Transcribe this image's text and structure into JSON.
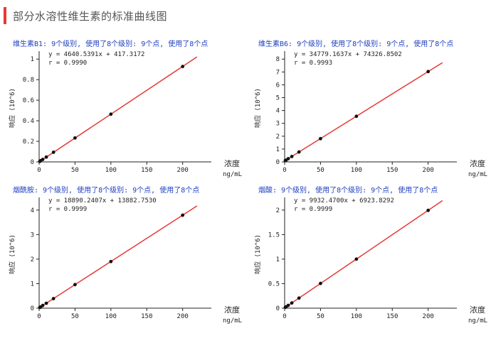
{
  "page_title": "部分水溶性维生素的标准曲线图",
  "chart_data": [
    {
      "type": "scatter",
      "title": "维生素B1: 9个级别, 使用了8个级别: 9个点, 使用了8个点",
      "equation": "y = 4640.5391x + 417.3172",
      "r_value": "r = 0.9990",
      "xlabel": "浓度",
      "xunit": "ng/mL",
      "ylabel": "响应 (10^6)",
      "xlim": [
        0,
        240
      ],
      "ylim": [
        0,
        1.05
      ],
      "x_ticks": [
        "0",
        "50",
        "100",
        "150",
        "200"
      ],
      "y_ticks": [
        "0",
        "0.2",
        "0.4",
        "0.6",
        "0.8",
        "1"
      ],
      "x_tick_values": [
        0,
        50,
        100,
        150,
        200
      ],
      "y_tick_values": [
        0,
        0.2,
        0.4,
        0.6,
        0.8,
        1
      ],
      "fit_line": {
        "slope": 0.0046405391,
        "intercept": 0.0004173
      },
      "points": [
        [
          1,
          0.005
        ],
        [
          2,
          0.012
        ],
        [
          5,
          0.024
        ],
        [
          10,
          0.047
        ],
        [
          20,
          0.094
        ],
        [
          50,
          0.233
        ],
        [
          100,
          0.464
        ],
        [
          200,
          0.928
        ]
      ]
    },
    {
      "type": "scatter",
      "title": "维生素B6: 9个级别, 使用了8个级别: 9个点, 使用了8个点",
      "equation": "y = 34779.1637x + 74326.8502",
      "r_value": "r = 0.9993",
      "xlabel": "浓度",
      "xunit": "ng/mL",
      "ylabel": "响应 (10^6)",
      "xlim": [
        0,
        240
      ],
      "ylim": [
        0,
        8.4
      ],
      "x_ticks": [
        "0",
        "50",
        "100",
        "150",
        "200"
      ],
      "y_ticks": [
        "0",
        "1",
        "2",
        "3",
        "4",
        "5",
        "6",
        "7",
        "8"
      ],
      "x_tick_values": [
        0,
        50,
        100,
        150,
        200
      ],
      "y_tick_values": [
        0,
        1,
        2,
        3,
        4,
        5,
        6,
        7,
        8
      ],
      "fit_line": {
        "slope": 0.0347791637,
        "intercept": 0.0743269
      },
      "points": [
        [
          1,
          0.11
        ],
        [
          2,
          0.14
        ],
        [
          5,
          0.25
        ],
        [
          10,
          0.42
        ],
        [
          20,
          0.77
        ],
        [
          50,
          1.81
        ],
        [
          100,
          3.55
        ],
        [
          200,
          7.03
        ]
      ]
    },
    {
      "type": "scatter",
      "title": "烟酰胺: 9个级别, 使用了8个级别: 9个点, 使用了8个点",
      "equation": "y = 18890.2407x + 13882.7530",
      "r_value": "r = 0.9999",
      "xlabel": "浓度",
      "xunit": "ng/mL",
      "ylabel": "响应 (10^6)",
      "xlim": [
        0,
        240
      ],
      "ylim": [
        0,
        4.4
      ],
      "x_ticks": [
        "0",
        "50",
        "100",
        "150",
        "200"
      ],
      "y_ticks": [
        "0",
        "1",
        "2",
        "3",
        "4"
      ],
      "x_tick_values": [
        0,
        50,
        100,
        150,
        200
      ],
      "y_tick_values": [
        0,
        1,
        2,
        3,
        4
      ],
      "fit_line": {
        "slope": 0.0188902407,
        "intercept": 0.0138828
      },
      "points": [
        [
          1,
          0.03
        ],
        [
          2,
          0.05
        ],
        [
          5,
          0.11
        ],
        [
          10,
          0.2
        ],
        [
          20,
          0.39
        ],
        [
          50,
          0.96
        ],
        [
          100,
          1.9
        ],
        [
          200,
          3.79
        ]
      ]
    },
    {
      "type": "scatter",
      "title": "烟酸: 9个级别, 使用了8个级别: 9个点, 使用了8个点",
      "equation": "y = 9932.4700x + 6923.8292",
      "r_value": "r = 0.9999",
      "xlabel": "浓度",
      "xunit": "ng/mL",
      "ylabel": "响应 (10^6)",
      "xlim": [
        0,
        240
      ],
      "ylim": [
        0,
        2.2
      ],
      "x_ticks": [
        "0",
        "50",
        "100",
        "150",
        "200"
      ],
      "y_ticks": [
        "0",
        "0.5",
        "1",
        "1.5",
        "2"
      ],
      "x_tick_values": [
        0,
        50,
        100,
        150,
        200
      ],
      "y_tick_values": [
        0,
        0.5,
        1,
        1.5,
        2
      ],
      "fit_line": {
        "slope": 0.00993247,
        "intercept": 0.0069238
      },
      "points": [
        [
          1,
          0.017
        ],
        [
          2,
          0.027
        ],
        [
          5,
          0.057
        ],
        [
          10,
          0.106
        ],
        [
          20,
          0.206
        ],
        [
          50,
          0.504
        ],
        [
          100,
          1.0
        ],
        [
          200,
          1.993
        ]
      ]
    }
  ],
  "colors": {
    "title_bar": "#e53935",
    "fit_line": "#e53935",
    "chart_title": "#1f3fbf",
    "axis": "#222222",
    "point": "#111111"
  }
}
